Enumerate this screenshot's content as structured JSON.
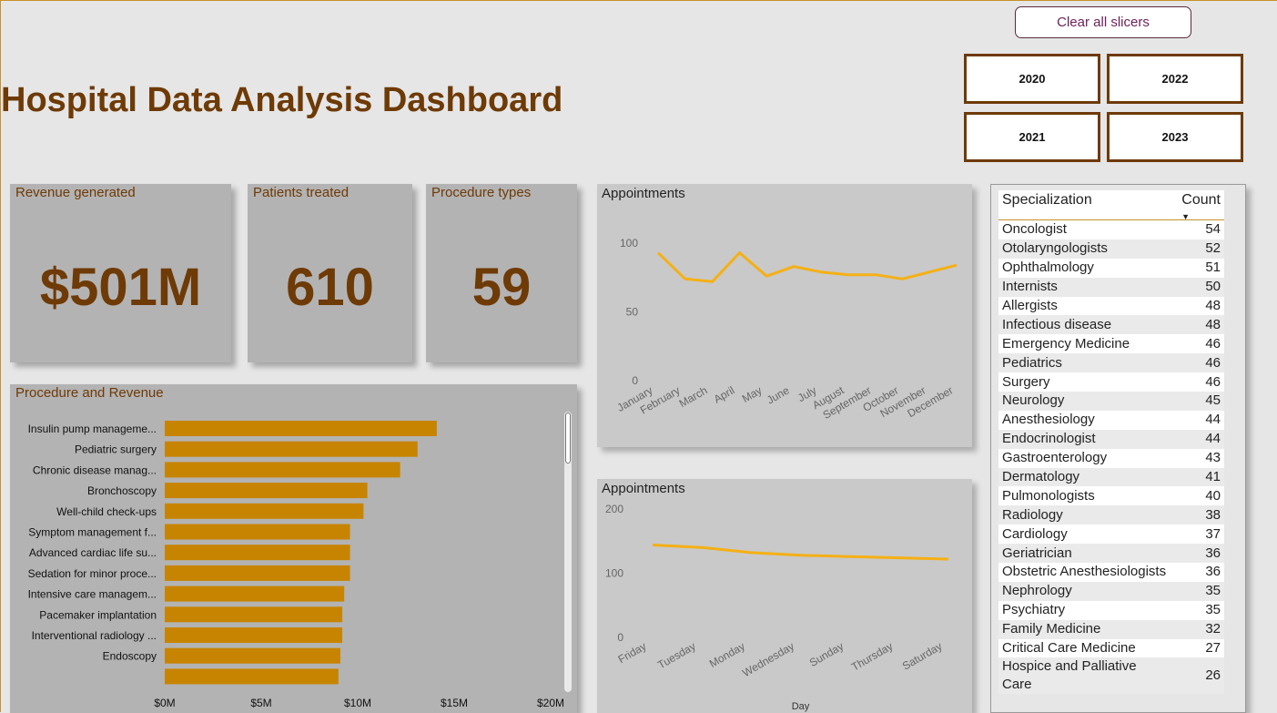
{
  "header": {
    "title": "Hospital Data Analysis Dashboard",
    "clear_label": "Clear all slicers"
  },
  "year_slicer": [
    "2020",
    "2022",
    "2021",
    "2023"
  ],
  "kpis": [
    {
      "label": "Revenue generated",
      "value": "$501M"
    },
    {
      "label": "Patients treated",
      "value": "610"
    },
    {
      "label": "Procedure types",
      "value": "59"
    }
  ],
  "colors": {
    "accent": "#6e3a06",
    "bar": "#c78400",
    "line": "#f5b014"
  },
  "specialization_table": {
    "headers": {
      "name": "Specialization",
      "count": "Count"
    },
    "rows": [
      {
        "name": "Oncologist",
        "count": "54"
      },
      {
        "name": "Otolaryngologists",
        "count": "52"
      },
      {
        "name": "Ophthalmology",
        "count": "51"
      },
      {
        "name": "Internists",
        "count": "50"
      },
      {
        "name": "Allergists",
        "count": "48"
      },
      {
        "name": "Infectious disease",
        "count": "48"
      },
      {
        "name": "Emergency Medicine",
        "count": "46"
      },
      {
        "name": "Pediatrics",
        "count": "46"
      },
      {
        "name": "Surgery",
        "count": "46"
      },
      {
        "name": "Neurology",
        "count": "45"
      },
      {
        "name": "Anesthesiology",
        "count": "44"
      },
      {
        "name": "Endocrinologist",
        "count": "44"
      },
      {
        "name": "Gastroenterology",
        "count": "43"
      },
      {
        "name": "Dermatology",
        "count": "41"
      },
      {
        "name": "Pulmonologists",
        "count": "40"
      },
      {
        "name": "Radiology",
        "count": "38"
      },
      {
        "name": "Cardiology",
        "count": "37"
      },
      {
        "name": "Geriatrician",
        "count": "36"
      },
      {
        "name": "Obstetric Anesthesiologists",
        "count": "36"
      },
      {
        "name": "Nephrology",
        "count": "35"
      },
      {
        "name": "Psychiatry",
        "count": "35"
      },
      {
        "name": "Family Medicine",
        "count": "32"
      },
      {
        "name": "Critical Care Medicine",
        "count": "27"
      },
      {
        "name": "Hospice and Palliative Care",
        "count": "26"
      }
    ]
  },
  "chart_data": [
    {
      "type": "bar",
      "orientation": "horizontal",
      "title": "Procedure and Revenue",
      "categories": [
        "Insulin pump manageme...",
        "Pediatric surgery",
        "Chronic disease manag...",
        "Bronchoscopy",
        "Well-child check-ups",
        "Symptom management f...",
        "Advanced cardiac life su...",
        "Sedation for minor proce...",
        "Intensive care managem...",
        "Pacemaker implantation",
        "Interventional radiology ...",
        "Endoscopy",
        ""
      ],
      "values": [
        14.1,
        13.1,
        12.2,
        10.5,
        10.3,
        9.6,
        9.6,
        9.6,
        9.3,
        9.2,
        9.2,
        9.1,
        9.0
      ],
      "xticks": [
        "$0M",
        "$5M",
        "$10M",
        "$15M",
        "$20M"
      ],
      "xlim": [
        0,
        20
      ]
    },
    {
      "type": "line",
      "title": "Appointments",
      "x": [
        "January",
        "February",
        "March",
        "April",
        "May",
        "June",
        "July",
        "August",
        "September",
        "October",
        "November",
        "December"
      ],
      "values": [
        93,
        74,
        72,
        93,
        76,
        83,
        79,
        77,
        77,
        74,
        79,
        84
      ],
      "yticks": [
        "0",
        "50",
        "100"
      ],
      "ylim": [
        0,
        100
      ]
    },
    {
      "type": "line",
      "title": "Appointments",
      "xlabel": "Day",
      "x": [
        "Friday",
        "Tuesday",
        "Monday",
        "Wednesday",
        "Sunday",
        "Thursday",
        "Saturday"
      ],
      "values": [
        144,
        140,
        132,
        128,
        126,
        124,
        122
      ],
      "yticks": [
        "0",
        "100",
        "200"
      ],
      "ylim": [
        0,
        200
      ]
    }
  ]
}
